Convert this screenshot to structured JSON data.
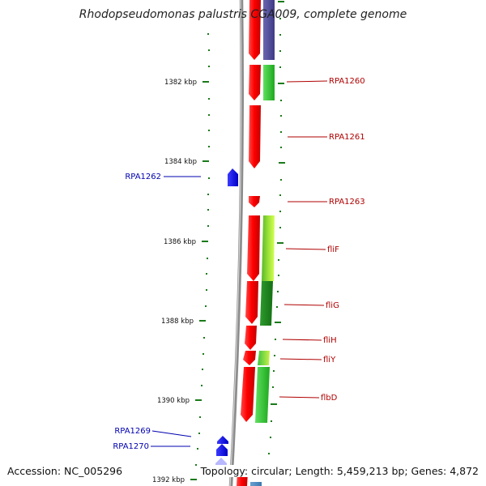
{
  "title": "Rhodopseudomonas palustris CGA009, complete genome",
  "footer": {
    "accession": "Accession: NC_005296",
    "stats": "Topology: circular; Length: 5,459,213 bp; Genes: 4,872"
  },
  "ruler_labels": [
    "1382 kbp",
    "1384 kbp",
    "1386 kbp",
    "1388 kbp",
    "1390 kbp",
    "1392 kbp"
  ],
  "genes_right": [
    "RPA1260",
    "RPA1261",
    "RPA1263",
    "fliF",
    "fliG",
    "fliH",
    "fliY",
    "flbD"
  ],
  "genes_left": [
    "RPA1262",
    "RPA1269",
    "RPA1270"
  ],
  "colors": {
    "forward_cds": "#ff0000",
    "reverse_cds": "#0000ff",
    "gene_label_right": "#b00000",
    "gene_label_left": "#0000b0",
    "tick": "#1a7a1a",
    "backbone": "#8c8c8c"
  }
}
